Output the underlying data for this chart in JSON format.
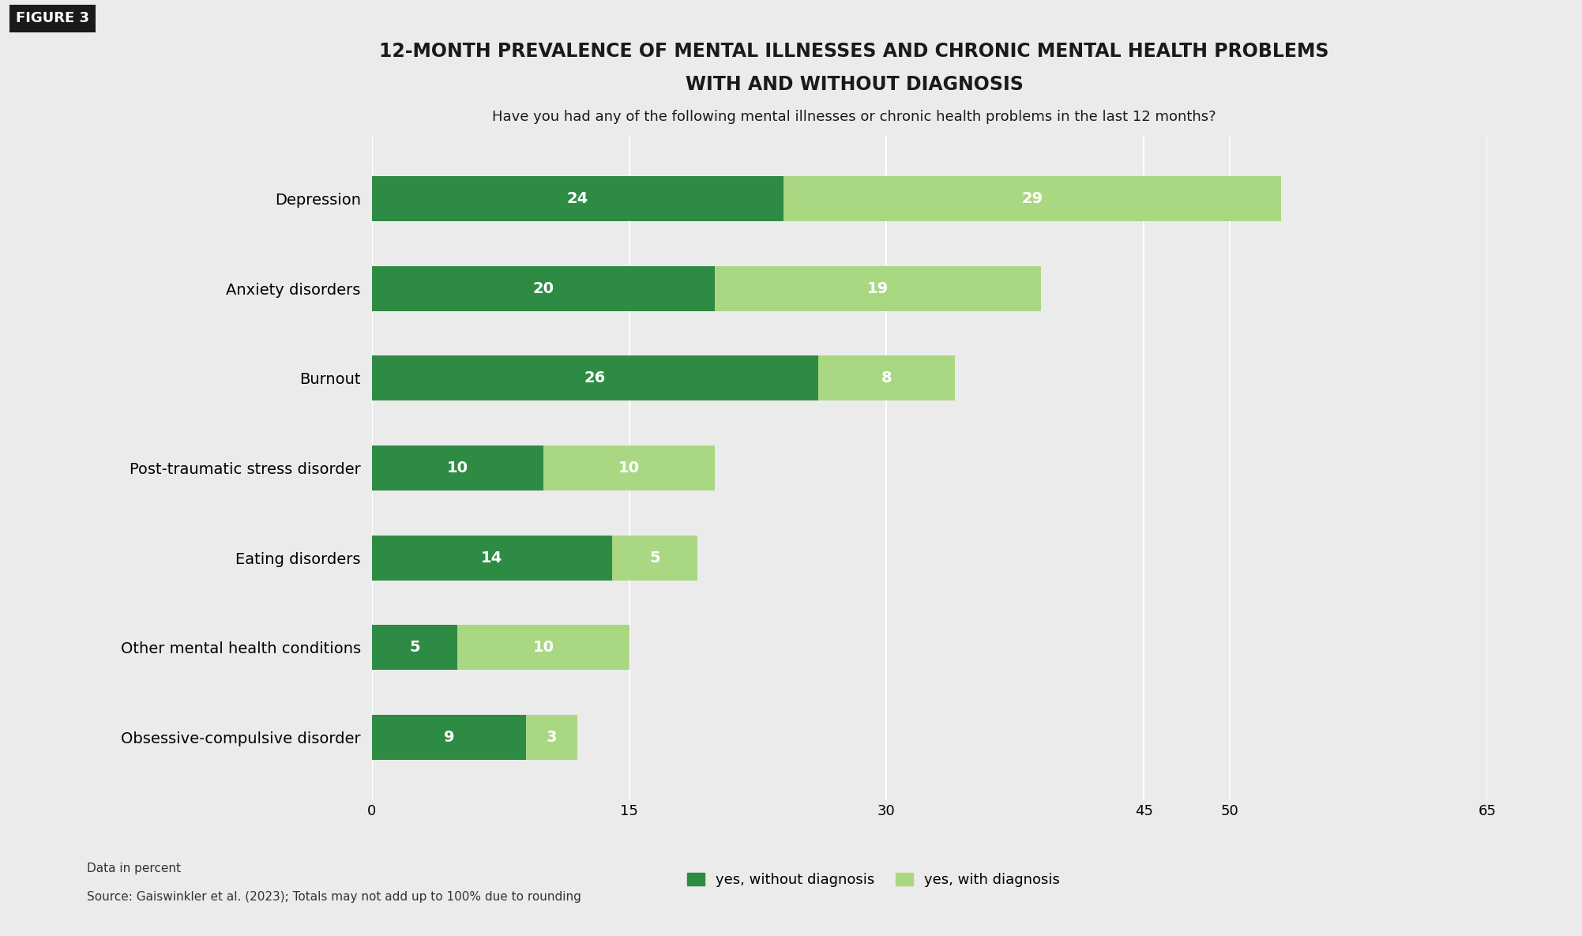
{
  "title_line1": "12-MONTH PREVALENCE OF MENTAL ILLNESSES AND CHRONIC MENTAL HEALTH PROBLEMS",
  "title_line2": "WITH AND WITHOUT DIAGNOSIS",
  "subtitle": "Have you had any of the following mental illnesses or chronic health problems in the last 12 months?",
  "categories": [
    "Depression",
    "Anxiety disorders",
    "Burnout",
    "Post-traumatic stress disorder",
    "Eating disorders",
    "Other mental health conditions",
    "Obsessive-compulsive disorder"
  ],
  "without_diagnosis": [
    24,
    20,
    26,
    10,
    14,
    5,
    9
  ],
  "with_diagnosis": [
    29,
    19,
    8,
    10,
    5,
    10,
    3
  ],
  "color_without": "#2e8b44",
  "color_with": "#aad882",
  "background_color": "#ebebeb",
  "xlim_max": 65,
  "xticks": [
    0,
    15,
    30,
    45,
    50,
    65
  ],
  "figure_label": "FIGURE 3",
  "legend_labels": [
    "yes, without diagnosis",
    "yes, with diagnosis"
  ],
  "footer_line1": "Data in percent",
  "footer_line2": "Source: Gaiswinkler et al. (2023); Totals may not add up to 100% due to rounding",
  "title_fontsize": 17,
  "subtitle_fontsize": 13,
  "bar_label_fontsize": 14,
  "ytick_fontsize": 14,
  "xtick_fontsize": 13,
  "legend_fontsize": 13,
  "footer_fontsize": 11
}
